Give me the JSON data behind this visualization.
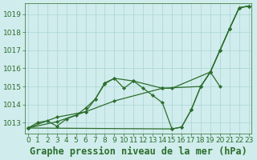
{
  "series": [
    {
      "x": [
        0,
        1,
        2,
        3,
        4,
        5,
        6,
        7,
        8,
        9,
        10,
        11,
        12,
        13,
        14,
        15,
        16,
        17,
        18,
        19,
        20,
        21,
        22,
        23
      ],
      "y": [
        1012.7,
        1013.0,
        1013.1,
        1012.8,
        1013.2,
        1013.4,
        1013.8,
        1014.3,
        1015.2,
        1015.45,
        1014.9,
        1015.3,
        1014.9,
        1014.5,
        1014.1,
        1012.65,
        1012.75,
        1013.7,
        1015.0,
        1015.8,
        1017.0,
        1018.2,
        1019.35,
        1019.45
      ]
    },
    {
      "x": [
        0,
        3,
        6,
        7,
        8,
        9,
        11,
        14,
        15,
        19,
        20,
        21,
        22,
        23
      ],
      "y": [
        1012.7,
        1013.05,
        1013.6,
        1014.3,
        1015.15,
        1015.45,
        1015.3,
        1014.9,
        1014.9,
        1015.8,
        1017.0,
        1018.2,
        1019.35,
        1019.45
      ]
    },
    {
      "x": [
        0,
        3,
        6,
        9,
        14,
        18,
        19,
        20,
        21,
        22,
        23
      ],
      "y": [
        1012.7,
        1013.3,
        1013.6,
        1014.2,
        1014.9,
        1015.0,
        1015.8,
        1017.0,
        1018.2,
        1019.35,
        1019.45
      ]
    },
    {
      "x": [
        0,
        15,
        16,
        17,
        18,
        19,
        20
      ],
      "y": [
        1012.7,
        1012.65,
        1012.75,
        1013.7,
        1015.0,
        1015.8,
        1015.0
      ]
    }
  ],
  "line_color": "#2d6e2d",
  "marker_color": "#2d6e2d",
  "bg_color": "#d0ecec",
  "grid_color": "#a8d4d4",
  "title": "Graphe pression niveau de la mer (hPa)",
  "xlabel_color": "#2d6e2d",
  "ylim": [
    1012.4,
    1019.6
  ],
  "xlim": [
    -0.3,
    23.3
  ],
  "yticks": [
    1013,
    1014,
    1015,
    1016,
    1017,
    1018,
    1019
  ],
  "xticks": [
    0,
    1,
    2,
    3,
    4,
    5,
    6,
    7,
    8,
    9,
    10,
    11,
    12,
    13,
    14,
    15,
    16,
    17,
    18,
    19,
    20,
    21,
    22,
    23
  ],
  "title_fontsize": 8.5,
  "tick_fontsize": 6.5,
  "tick_color": "#2d6e2d",
  "axis_color": "#2d6e2d"
}
